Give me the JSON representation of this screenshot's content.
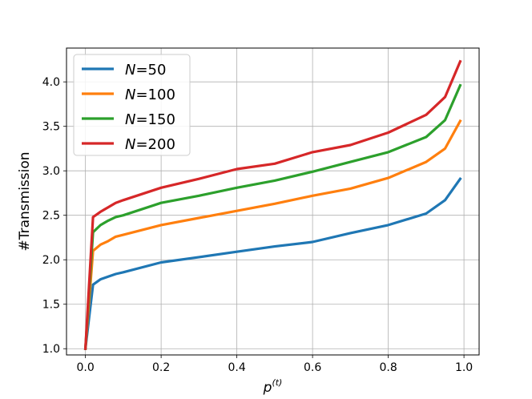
{
  "chart_data": {
    "type": "line",
    "title": "",
    "xlabel": "p",
    "xlabel_superscript": "(t)",
    "ylabel": "#Transmission",
    "xlim": [
      -0.05,
      1.04
    ],
    "ylim": [
      0.93,
      4.38
    ],
    "xticks": [
      0.0,
      0.2,
      0.4,
      0.6,
      0.8,
      1.0
    ],
    "xtick_labels": [
      "0.0",
      "0.2",
      "0.4",
      "0.6",
      "0.8",
      "1.0"
    ],
    "yticks": [
      1.0,
      1.5,
      2.0,
      2.5,
      3.0,
      3.5,
      4.0
    ],
    "ytick_labels": [
      "1.0",
      "1.5",
      "2.0",
      "2.5",
      "3.0",
      "3.5",
      "4.0"
    ],
    "grid": true,
    "legend_position": "top-left",
    "x": [
      0.0,
      0.02,
      0.04,
      0.06,
      0.08,
      0.1,
      0.2,
      0.3,
      0.4,
      0.5,
      0.6,
      0.7,
      0.8,
      0.9,
      0.95,
      0.99
    ],
    "series": [
      {
        "name": "N=50",
        "name_var": "N",
        "name_val": "=50",
        "color": "#1f77b4",
        "values": [
          1.0,
          1.72,
          1.78,
          1.81,
          1.84,
          1.86,
          1.97,
          2.03,
          2.09,
          2.15,
          2.2,
          2.3,
          2.39,
          2.52,
          2.67,
          2.91
        ]
      },
      {
        "name": "N=100",
        "name_var": "N",
        "name_val": "=100",
        "color": "#ff7f0e",
        "values": [
          1.0,
          2.1,
          2.17,
          2.21,
          2.26,
          2.28,
          2.39,
          2.47,
          2.55,
          2.63,
          2.72,
          2.8,
          2.92,
          3.1,
          3.25,
          3.56
        ]
      },
      {
        "name": "N=150",
        "name_var": "N",
        "name_val": "=150",
        "color": "#2ca02c",
        "values": [
          1.0,
          2.31,
          2.39,
          2.44,
          2.48,
          2.5,
          2.64,
          2.72,
          2.81,
          2.89,
          2.99,
          3.1,
          3.21,
          3.38,
          3.57,
          3.96
        ]
      },
      {
        "name": "N=200",
        "name_var": "N",
        "name_val": "=200",
        "color": "#d62728",
        "values": [
          1.0,
          2.48,
          2.54,
          2.59,
          2.64,
          2.67,
          2.81,
          2.91,
          3.02,
          3.08,
          3.21,
          3.29,
          3.43,
          3.63,
          3.83,
          4.23
        ]
      }
    ]
  }
}
